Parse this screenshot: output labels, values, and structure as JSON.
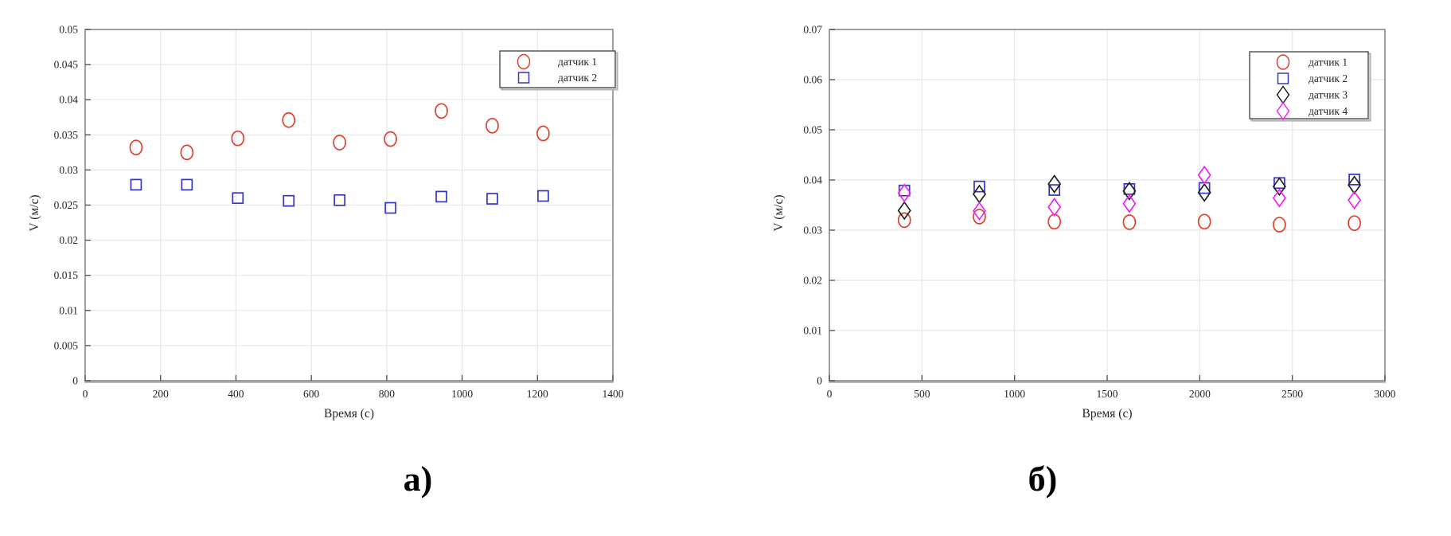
{
  "panels": {
    "left": {
      "caption": "а)"
    },
    "right": {
      "caption": "б)"
    }
  },
  "colors": {
    "series_red": "#e0402f",
    "series_blue": "#3434c8",
    "series_black": "#222222",
    "series_magenta": "#f320f3",
    "grid": "#e8e8e8",
    "axis": "#898989",
    "text": "#262626"
  },
  "chart_data": [
    {
      "type": "scatter",
      "title": "",
      "xlabel": "Время (с)",
      "ylabel": "V (м/с)",
      "xlim": [
        0,
        1400
      ],
      "ylim": [
        0,
        0.05
      ],
      "xticks": [
        0,
        200,
        400,
        600,
        800,
        1000,
        1200,
        1400
      ],
      "yticks": [
        0,
        0.005,
        0.01,
        0.015,
        0.02,
        0.025,
        0.03,
        0.035,
        0.04,
        0.045,
        0.05
      ],
      "grid": true,
      "legend_position": "top-right",
      "series": [
        {
          "name": "датчик 1",
          "marker": "circle",
          "color": "#e0402f",
          "x": [
            135,
            270,
            405,
            540,
            675,
            810,
            945,
            1080,
            1215
          ],
          "y": [
            0.0332,
            0.0325,
            0.0345,
            0.0371,
            0.0339,
            0.0344,
            0.0384,
            0.0363,
            0.0352
          ]
        },
        {
          "name": "датчик 2",
          "marker": "square",
          "color": "#3434c8",
          "x": [
            135,
            270,
            405,
            540,
            675,
            810,
            945,
            1080,
            1215
          ],
          "y": [
            0.0279,
            0.0279,
            0.026,
            0.0256,
            0.0257,
            0.0246,
            0.0262,
            0.0259,
            0.0263
          ]
        }
      ]
    },
    {
      "type": "scatter",
      "title": "",
      "xlabel": "Время (с)",
      "ylabel": "V (м/с)",
      "xlim": [
        0,
        3000
      ],
      "ylim": [
        0,
        0.07
      ],
      "xticks": [
        0,
        500,
        1000,
        1500,
        2000,
        2500,
        3000
      ],
      "yticks": [
        0,
        0.01,
        0.02,
        0.03,
        0.04,
        0.05,
        0.06,
        0.07
      ],
      "grid": true,
      "legend_position": "top-right",
      "series": [
        {
          "name": "датчик 1",
          "marker": "circle",
          "color": "#e0402f",
          "x": [
            405,
            810,
            1215,
            1620,
            2025,
            2430,
            2835
          ],
          "y": [
            0.032,
            0.0327,
            0.0317,
            0.0316,
            0.0317,
            0.0311,
            0.0314
          ]
        },
        {
          "name": "датчик 2",
          "marker": "square",
          "color": "#3434c8",
          "x": [
            405,
            810,
            1215,
            1620,
            2025,
            2430,
            2835
          ],
          "y": [
            0.0379,
            0.0387,
            0.038,
            0.0382,
            0.0384,
            0.0394,
            0.0401
          ]
        },
        {
          "name": "датчик 3",
          "marker": "diamond",
          "color": "#222222",
          "x": [
            405,
            810,
            1215,
            1620,
            2025,
            2430,
            2835
          ],
          "y": [
            0.0339,
            0.0372,
            0.0392,
            0.0378,
            0.0375,
            0.0387,
            0.039
          ]
        },
        {
          "name": "датчик 4",
          "marker": "diamond",
          "color": "#f320f3",
          "x": [
            405,
            810,
            1215,
            1620,
            2025,
            2430,
            2835
          ],
          "y": [
            0.0374,
            0.0338,
            0.0346,
            0.0353,
            0.041,
            0.0364,
            0.036
          ]
        }
      ]
    }
  ]
}
